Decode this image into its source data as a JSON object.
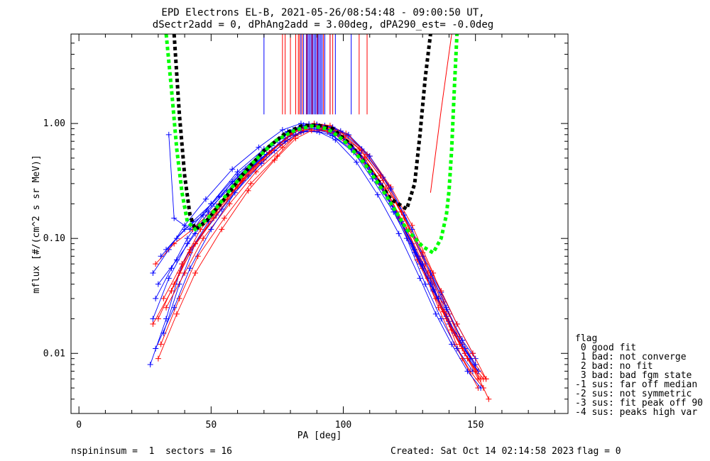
{
  "chart_data": {
    "type": "line",
    "title_line1": "EPD Electrons EL-B, 2021-05-26/08:54:48 - 09:00:50 UT,",
    "title_line2": "dSectr2add = 0, dPhAng2add = 3.00deg, dPA290_est=  -0.0deg",
    "xlabel": "PA [deg]",
    "ylabel": "mflux [#/(cm^2 s sr MeV)]",
    "xlim": [
      -3,
      185
    ],
    "ylim": [
      0.003,
      6.0
    ],
    "yscale": "log",
    "x_ticks": [
      0,
      50,
      100,
      150
    ],
    "x_tick_labels": [
      "0",
      "50",
      "100",
      "150"
    ],
    "y_ticks": [
      0.01,
      0.1,
      1.0
    ],
    "y_tick_labels": [
      "0.01",
      "0.10",
      "1.00"
    ],
    "series": [
      {
        "color": "#ff0000",
        "x": [
          30,
          36,
          42,
          52,
          62,
          72,
          80,
          86,
          92,
          98,
          106,
          114,
          122,
          130,
          136,
          142,
          148,
          153
        ],
        "y": [
          0.02,
          0.04,
          0.08,
          0.16,
          0.32,
          0.55,
          0.82,
          0.95,
          0.92,
          0.82,
          0.55,
          0.3,
          0.14,
          0.055,
          0.025,
          0.012,
          0.007,
          0.005
        ]
      },
      {
        "color": "#0000ff",
        "x": [
          29,
          35,
          41,
          50,
          60,
          70,
          79,
          85,
          91,
          97,
          104,
          112,
          120,
          128,
          134,
          140,
          146,
          151
        ],
        "y": [
          0.03,
          0.055,
          0.1,
          0.2,
          0.38,
          0.6,
          0.85,
          0.97,
          0.95,
          0.85,
          0.6,
          0.35,
          0.17,
          0.07,
          0.035,
          0.018,
          0.01,
          0.007
        ]
      },
      {
        "color": "#ff0000",
        "x": [
          31,
          38,
          45,
          55,
          65,
          75,
          82,
          88,
          94,
          100,
          108,
          116,
          124,
          132,
          139,
          145,
          151
        ],
        "y": [
          0.012,
          0.03,
          0.07,
          0.15,
          0.3,
          0.52,
          0.78,
          0.9,
          0.88,
          0.78,
          0.5,
          0.26,
          0.12,
          0.045,
          0.02,
          0.009,
          0.005
        ]
      },
      {
        "color": "#0000ff",
        "x": [
          28,
          34,
          40,
          48,
          58,
          68,
          77,
          84,
          90,
          96,
          103,
          110,
          118,
          126,
          133,
          139,
          145,
          150
        ],
        "y": [
          0.05,
          0.08,
          0.13,
          0.22,
          0.4,
          0.62,
          0.88,
          1.0,
          0.98,
          0.9,
          0.65,
          0.4,
          0.2,
          0.09,
          0.045,
          0.024,
          0.013,
          0.009
        ]
      },
      {
        "color": "#0000ff",
        "x": [
          32,
          38,
          44,
          54,
          64,
          74,
          82,
          88,
          94,
          100,
          108,
          116,
          124,
          131,
          137,
          143,
          149
        ],
        "y": [
          0.015,
          0.04,
          0.09,
          0.18,
          0.35,
          0.58,
          0.8,
          0.9,
          0.86,
          0.74,
          0.48,
          0.25,
          0.1,
          0.04,
          0.02,
          0.011,
          0.007
        ]
      },
      {
        "color": "#ff0000",
        "x": [
          29,
          36,
          43,
          53,
          63,
          73,
          81,
          87,
          93,
          99,
          107,
          115,
          123,
          131,
          138,
          144,
          150,
          154
        ],
        "y": [
          0.06,
          0.09,
          0.12,
          0.2,
          0.36,
          0.58,
          0.84,
          0.98,
          0.95,
          0.84,
          0.58,
          0.32,
          0.15,
          0.06,
          0.028,
          0.014,
          0.008,
          0.006
        ]
      },
      {
        "color": "#0000ff",
        "x": [
          27,
          33,
          39,
          49,
          59,
          69,
          78,
          85,
          91,
          97,
          105,
          113,
          121,
          129,
          135,
          141,
          147,
          152
        ],
        "y": [
          0.008,
          0.02,
          0.06,
          0.14,
          0.3,
          0.5,
          0.74,
          0.86,
          0.84,
          0.72,
          0.46,
          0.24,
          0.11,
          0.045,
          0.022,
          0.012,
          0.007,
          0.005
        ]
      },
      {
        "color": "#ff0000",
        "x": [
          33,
          40,
          47,
          57,
          67,
          77,
          84,
          90,
          96,
          102,
          110,
          118,
          126,
          134,
          140,
          146,
          152
        ],
        "y": [
          0.025,
          0.05,
          0.1,
          0.2,
          0.38,
          0.62,
          0.86,
          0.96,
          0.9,
          0.78,
          0.52,
          0.28,
          0.13,
          0.05,
          0.022,
          0.01,
          0.006
        ]
      },
      {
        "color": "#0000ff",
        "x": [
          30,
          37,
          44,
          52,
          61,
          71,
          80,
          86,
          92,
          98,
          106,
          114,
          122,
          129,
          136,
          142,
          148
        ],
        "y": [
          0.04,
          0.065,
          0.11,
          0.19,
          0.33,
          0.54,
          0.8,
          0.93,
          0.92,
          0.8,
          0.55,
          0.3,
          0.14,
          0.06,
          0.03,
          0.015,
          0.009
        ]
      },
      {
        "color": "#ff0000",
        "x": [
          28,
          35,
          42,
          51,
          60,
          70,
          79,
          85,
          91,
          97,
          105,
          113,
          121,
          128,
          135,
          141,
          147,
          153
        ],
        "y": [
          0.018,
          0.035,
          0.075,
          0.15,
          0.28,
          0.48,
          0.72,
          0.88,
          0.9,
          0.8,
          0.56,
          0.31,
          0.15,
          0.065,
          0.03,
          0.016,
          0.009,
          0.006
        ]
      },
      {
        "color": "#0000ff",
        "x": [
          31,
          37,
          43,
          53,
          63,
          73,
          81,
          87,
          93,
          99,
          107,
          115,
          123,
          130,
          137,
          143,
          149
        ],
        "y": [
          0.07,
          0.1,
          0.14,
          0.23,
          0.4,
          0.64,
          0.88,
          0.99,
          0.96,
          0.86,
          0.6,
          0.34,
          0.16,
          0.07,
          0.034,
          0.018,
          0.01
        ]
      },
      {
        "color": "#0000ff",
        "x": [
          29,
          36,
          42,
          50,
          59,
          69,
          78,
          84,
          90,
          96,
          104,
          111,
          119,
          127,
          134,
          140,
          146,
          151
        ],
        "y": [
          0.011,
          0.025,
          0.055,
          0.12,
          0.25,
          0.45,
          0.7,
          0.84,
          0.86,
          0.78,
          0.56,
          0.33,
          0.17,
          0.075,
          0.036,
          0.019,
          0.011,
          0.007
        ]
      },
      {
        "color": "#ff0000",
        "x": [
          32,
          39,
          46,
          56,
          66,
          76,
          83,
          89,
          95,
          101,
          109,
          117,
          125,
          133,
          139,
          145,
          151
        ],
        "y": [
          0.03,
          0.06,
          0.12,
          0.22,
          0.42,
          0.66,
          0.9,
          1.0,
          0.96,
          0.82,
          0.54,
          0.29,
          0.12,
          0.048,
          0.022,
          0.011,
          0.006
        ]
      },
      {
        "color": "#0000ff",
        "x": [
          28,
          34,
          41,
          49,
          58,
          68,
          77,
          83,
          89,
          95,
          103,
          111,
          119,
          127,
          133,
          139,
          145,
          150
        ],
        "y": [
          0.02,
          0.045,
          0.09,
          0.17,
          0.31,
          0.52,
          0.77,
          0.9,
          0.9,
          0.82,
          0.6,
          0.36,
          0.18,
          0.08,
          0.04,
          0.021,
          0.012,
          0.008
        ]
      },
      {
        "color": "#0000ff",
        "x": [
          33,
          40,
          47,
          56,
          66,
          76,
          84,
          90,
          96,
          102,
          110,
          118,
          126,
          133,
          139,
          145
        ],
        "y": [
          0.08,
          0.12,
          0.16,
          0.26,
          0.44,
          0.68,
          0.9,
          0.98,
          0.93,
          0.8,
          0.52,
          0.27,
          0.12,
          0.05,
          0.025,
          0.013
        ]
      },
      {
        "color": "#ff0000",
        "x": [
          30,
          37,
          44,
          54,
          64,
          74,
          82,
          88,
          94,
          100,
          108,
          116,
          124,
          132,
          138,
          144,
          150,
          155
        ],
        "y": [
          0.009,
          0.022,
          0.05,
          0.12,
          0.26,
          0.48,
          0.74,
          0.87,
          0.86,
          0.76,
          0.5,
          0.27,
          0.12,
          0.05,
          0.023,
          0.012,
          0.007,
          0.004
        ]
      },
      {
        "color": "#0000ff",
        "x": [
          34,
          36,
          42,
          50,
          60,
          70,
          79,
          86,
          92,
          98,
          106,
          114,
          122,
          130,
          136
        ],
        "y": [
          0.8,
          0.15,
          0.12,
          0.2,
          0.36,
          0.58,
          0.84,
          0.95,
          0.93,
          0.82,
          0.56,
          0.3,
          0.14,
          0.06,
          0.03
        ]
      },
      {
        "color": "#ff0000",
        "x": [
          38,
          44,
          52,
          62,
          72,
          80,
          86,
          92,
          98,
          106,
          114,
          122,
          130,
          137,
          143,
          149,
          154
        ],
        "y": [
          0.05,
          0.09,
          0.17,
          0.33,
          0.56,
          0.8,
          0.94,
          0.94,
          0.84,
          0.6,
          0.35,
          0.17,
          0.075,
          0.035,
          0.018,
          0.01,
          0.006
        ]
      }
    ],
    "fit_curves": [
      {
        "color": "#000000",
        "x": [
          36,
          38,
          40,
          42,
          44,
          48,
          55,
          62,
          70,
          78,
          84,
          90,
          96,
          102,
          110,
          118,
          124,
          127,
          129,
          131,
          133
        ],
        "y": [
          6.0,
          1.2,
          0.35,
          0.16,
          0.12,
          0.14,
          0.22,
          0.36,
          0.58,
          0.82,
          0.95,
          0.97,
          0.9,
          0.68,
          0.4,
          0.22,
          0.18,
          0.3,
          0.8,
          2.5,
          6.0
        ]
      },
      {
        "color": "#00ff00",
        "x": [
          33,
          35,
          37,
          39,
          41,
          44,
          50,
          58,
          66,
          74,
          82,
          88,
          94,
          100,
          108,
          116,
          124,
          130,
          134,
          137,
          139,
          140,
          141,
          142,
          143
        ],
        "y": [
          6.0,
          2.0,
          0.6,
          0.25,
          0.14,
          0.12,
          0.16,
          0.28,
          0.46,
          0.7,
          0.88,
          0.95,
          0.9,
          0.72,
          0.45,
          0.24,
          0.12,
          0.085,
          0.075,
          0.1,
          0.16,
          0.26,
          0.6,
          2.0,
          6.0
        ]
      }
    ],
    "vertical_lines": [
      {
        "color": "#0000ff",
        "x": [
          70,
          84,
          85,
          86,
          86.5,
          87,
          87.5,
          88,
          88.5,
          89,
          89.5,
          90,
          90.5,
          91,
          91.5,
          92,
          93,
          95,
          97,
          103
        ]
      },
      {
        "color": "#ff0000",
        "x": [
          77,
          78,
          80,
          82,
          83,
          83.5,
          84.5,
          86.2,
          88.2,
          90.2,
          92.5,
          95,
          96,
          106,
          109
        ]
      }
    ],
    "extra_lines": [
      {
        "color": "#ff0000",
        "x": [
          133,
          137,
          141
        ],
        "y": [
          0.25,
          1.3,
          6.0
        ]
      }
    ],
    "flag_value": 0
  },
  "legend": {
    "title": "flag",
    "items": [
      " 0 good fit",
      " 1 bad: not converge",
      " 2 bad: no fit",
      " 3 bad: bad fgm state",
      "-1 sus: far off median",
      "-2 sus: not symmetric",
      "-3 sus: fit peak off 90",
      "-4 sus: peaks high var"
    ]
  },
  "footer": {
    "left": "nspininsum =  1  sectors = 16",
    "created": "Created: Sat Oct 14 02:14:58 2023",
    "flag": "flag = 0"
  }
}
